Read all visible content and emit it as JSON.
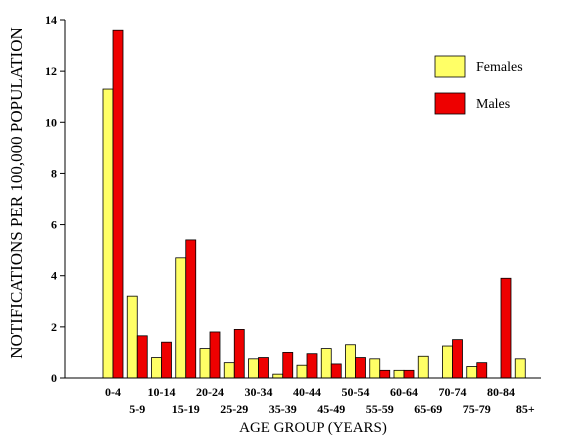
{
  "chart_data": {
    "type": "bar",
    "ylabel": "NOTIFICATIONS PER 100,000 POPULATION",
    "xlabel": "AGE GROUP (YEARS)",
    "ylim": [
      0,
      14
    ],
    "yticks": [
      0,
      2,
      4,
      6,
      8,
      10,
      12,
      14
    ],
    "legend_position": "top-right",
    "grid": false,
    "categories": [
      "0-4",
      "5-9",
      "10-14",
      "15-19",
      "20-24",
      "25-29",
      "30-34",
      "35-39",
      "40-44",
      "45-49",
      "50-54",
      "55-59",
      "60-64",
      "65-69",
      "70-74",
      "75-79",
      "80-84",
      "85+"
    ],
    "series": [
      {
        "name": "Females",
        "color": "#ffff66",
        "values": [
          11.3,
          3.2,
          0.8,
          4.7,
          1.15,
          0.6,
          0.75,
          0.15,
          0.5,
          1.15,
          1.3,
          0.75,
          0.3,
          0.85,
          1.25,
          0.45,
          0.0,
          0.75
        ]
      },
      {
        "name": "Males",
        "color": "#ee0000",
        "values": [
          13.6,
          1.65,
          1.4,
          5.4,
          1.8,
          1.9,
          0.8,
          1.0,
          0.95,
          0.55,
          0.8,
          0.3,
          0.3,
          0.0,
          1.5,
          0.6,
          3.9,
          0.0
        ]
      }
    ]
  }
}
